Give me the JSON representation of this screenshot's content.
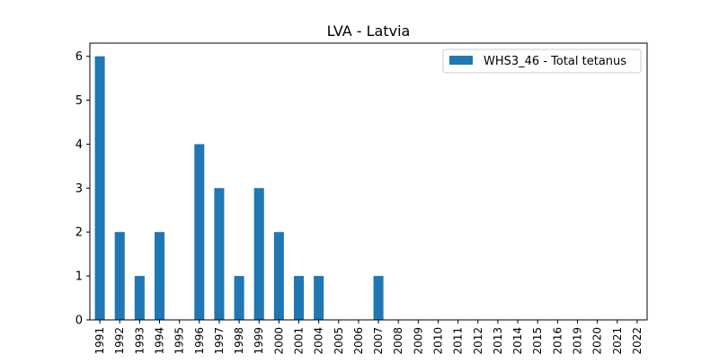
{
  "chart_data": {
    "type": "bar",
    "title": "LVA - Latvia",
    "xlabel": "",
    "ylabel": "",
    "ylim": [
      0,
      6.3
    ],
    "y_ticks": [
      0,
      1,
      2,
      3,
      4,
      5,
      6
    ],
    "grid": false,
    "legend_position": "upper right",
    "categories": [
      "1991",
      "1992",
      "1993",
      "1994",
      "1995",
      "1996",
      "1997",
      "1998",
      "1999",
      "2000",
      "2001",
      "2004",
      "2005",
      "2006",
      "2007",
      "2008",
      "2009",
      "2010",
      "2011",
      "2012",
      "2013",
      "2014",
      "2015",
      "2016",
      "2019",
      "2020",
      "2021",
      "2022"
    ],
    "series": [
      {
        "name": "WHS3_46 - Total tetanus",
        "color": "#1f77b4",
        "values": [
          6,
          2,
          1,
          2,
          0,
          4,
          3,
          1,
          3,
          2,
          1,
          1,
          0,
          0,
          1,
          0,
          0,
          0,
          0,
          0,
          0,
          0,
          0,
          0,
          0,
          0,
          0,
          0
        ]
      }
    ]
  }
}
